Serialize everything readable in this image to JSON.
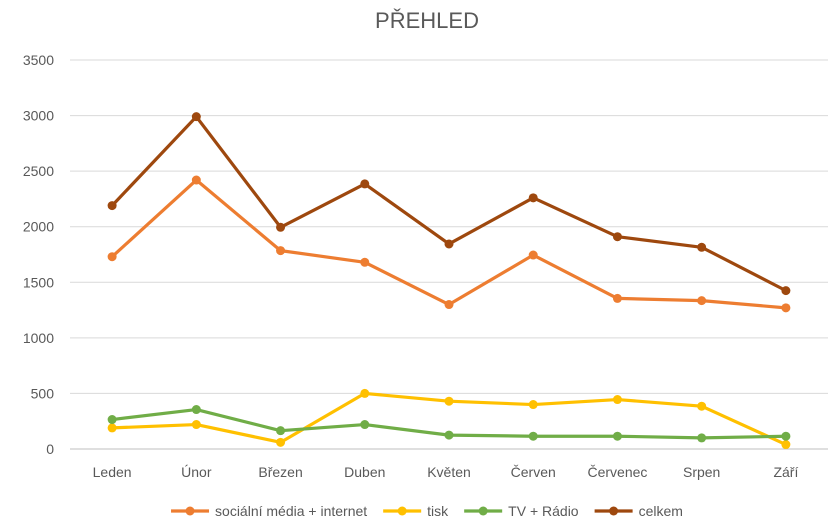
{
  "chart_data": {
    "type": "line",
    "title": "PŘEHLED",
    "xlabel": "",
    "ylabel": "",
    "ylim": [
      0,
      3500
    ],
    "yticks": [
      0,
      500,
      1000,
      1500,
      2000,
      2500,
      3000,
      3500
    ],
    "grid": true,
    "legend_position": "bottom",
    "categories": [
      "Leden",
      "Únor",
      "Březen",
      "Duben",
      "Květen",
      "Červen",
      "Červenec",
      "Srpen",
      "Září"
    ],
    "series": [
      {
        "name": "sociální média + internet",
        "color": "#ED7D31",
        "values": [
          1730,
          2420,
          1785,
          1680,
          1300,
          1745,
          1355,
          1335,
          1270
        ]
      },
      {
        "name": "tisk",
        "color": "#FFC000",
        "values": [
          190,
          220,
          60,
          500,
          430,
          400,
          445,
          385,
          40
        ]
      },
      {
        "name": "TV + Rádio",
        "color": "#70AD47",
        "values": [
          265,
          355,
          165,
          220,
          125,
          115,
          115,
          100,
          115
        ]
      },
      {
        "name": "celkem",
        "color": "#9E480E",
        "values": [
          2190,
          2990,
          1995,
          2385,
          1845,
          2260,
          1910,
          1815,
          1425
        ]
      }
    ]
  }
}
